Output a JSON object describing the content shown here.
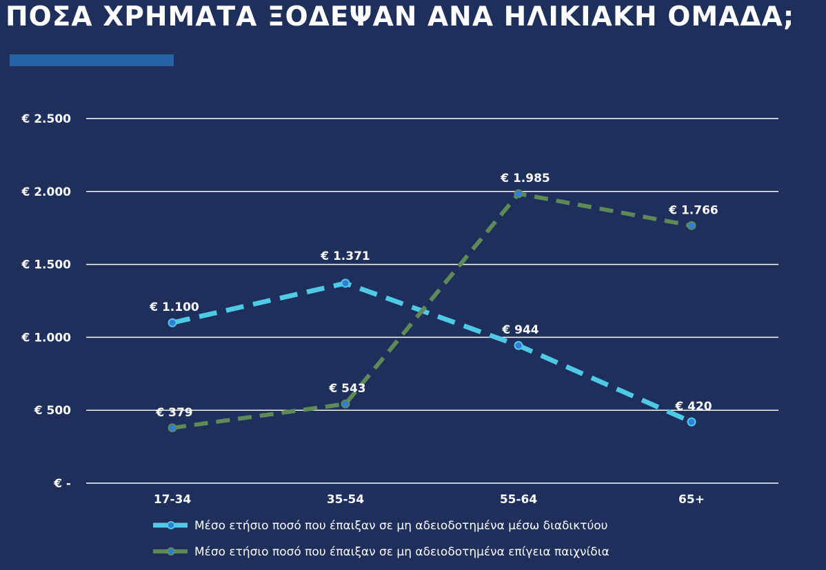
{
  "title": "ΠΟΣΑ ΧΡΗΜΑΤΑ ΞΟΔΕΨΑΝ ΑΝΑ ΗΛΙΚΙΑΚΗ ΟΜΑΔΑ;",
  "colors": {
    "background": "#1e2f5c",
    "accent_bar": "#2563a8",
    "gridline": "#ffffff",
    "series_online": "#4ec9e6",
    "series_landbased": "#5e8a57",
    "marker": "#2f7ed8"
  },
  "chart_data": {
    "type": "line",
    "categories": [
      "17-34",
      "35-54",
      "55-64",
      "65+"
    ],
    "ylim": [
      0,
      2500
    ],
    "yticks": [
      {
        "value": 0,
        "label": "€ -"
      },
      {
        "value": 500,
        "label": "€ 500"
      },
      {
        "value": 1000,
        "label": "€ 1.000"
      },
      {
        "value": 1500,
        "label": "€ 1.500"
      },
      {
        "value": 2000,
        "label": "€ 2.000"
      },
      {
        "value": 2500,
        "label": "€ 2.500"
      }
    ],
    "grid": true,
    "legend_position": "bottom",
    "series": [
      {
        "name": "Μέσο ετήσιο ποσό που έπαιξαν σε μη αδειοδοτημένα μέσω διαδικτύου",
        "values": [
          1100,
          1371,
          944,
          420
        ],
        "labels": [
          "€ 1.100",
          "€ 1.371",
          "€ 944",
          "€ 420"
        ]
      },
      {
        "name": "Μέσο ετήσιο ποσό που έπαιξαν σε μη αδειοδοτημένα επίγεια παιχνίδια",
        "values": [
          379,
          543,
          1985,
          1766
        ],
        "labels": [
          "€ 379",
          "€ 543",
          "€ 1.985",
          "€ 1.766"
        ]
      }
    ]
  }
}
